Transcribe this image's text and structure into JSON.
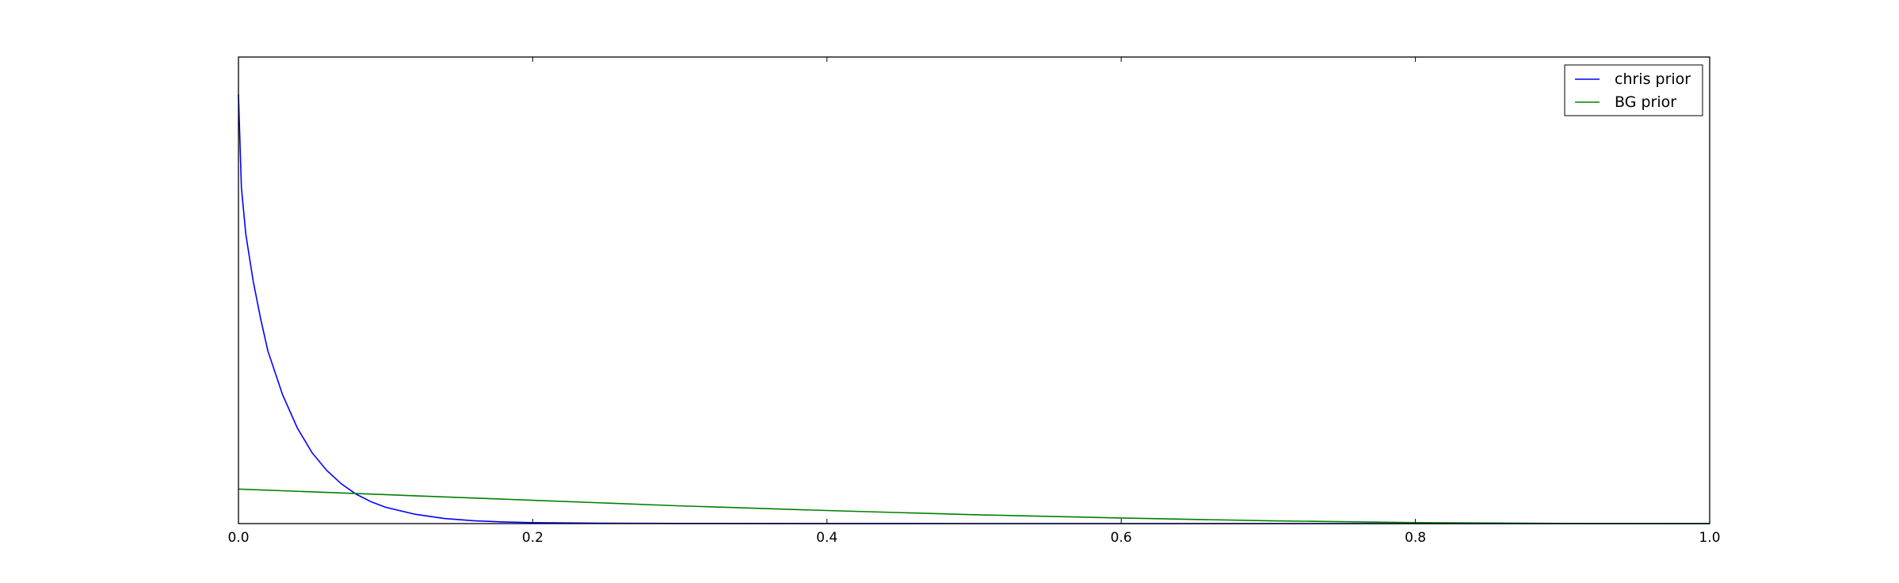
{
  "chart_data": {
    "type": "line",
    "xlim": [
      0.0,
      1.0
    ],
    "ylim": [
      0.0,
      1.0
    ],
    "y_scale_note": "y axis has no printed tick labels; values normalized so top of axes = 1",
    "x_ticks": [
      "0.0",
      "0.2",
      "0.4",
      "0.6",
      "0.8",
      "1.0"
    ],
    "x_tick_values": [
      0.0,
      0.2,
      0.4,
      0.6,
      0.8,
      1.0
    ],
    "y_ticks": [],
    "grid": false,
    "legend_position": "top-right",
    "series": [
      {
        "name": "chris prior",
        "color": "#0000ff",
        "x": [
          0.0,
          0.002,
          0.005,
          0.01,
          0.015,
          0.02,
          0.03,
          0.04,
          0.05,
          0.06,
          0.07,
          0.08,
          0.09,
          0.1,
          0.12,
          0.14,
          0.16,
          0.18,
          0.2,
          0.25,
          0.3,
          0.4,
          0.5,
          0.6,
          0.8,
          1.0
        ],
        "y": [
          0.92,
          0.72,
          0.62,
          0.52,
          0.44,
          0.37,
          0.276,
          0.205,
          0.152,
          0.114,
          0.085,
          0.063,
          0.047,
          0.035,
          0.02,
          0.011,
          0.006,
          0.0035,
          0.002,
          0.0008,
          0.0003,
          0.0001,
          0.0,
          0.0,
          0.0,
          0.0
        ]
      },
      {
        "name": "BG prior",
        "color": "#008000",
        "x": [
          0.0,
          0.1,
          0.2,
          0.3,
          0.4,
          0.5,
          0.6,
          0.7,
          0.8,
          0.9,
          1.0
        ],
        "y": [
          0.074,
          0.062,
          0.05,
          0.038,
          0.028,
          0.019,
          0.012,
          0.006,
          0.002,
          0.0003,
          0.0
        ]
      }
    ]
  }
}
